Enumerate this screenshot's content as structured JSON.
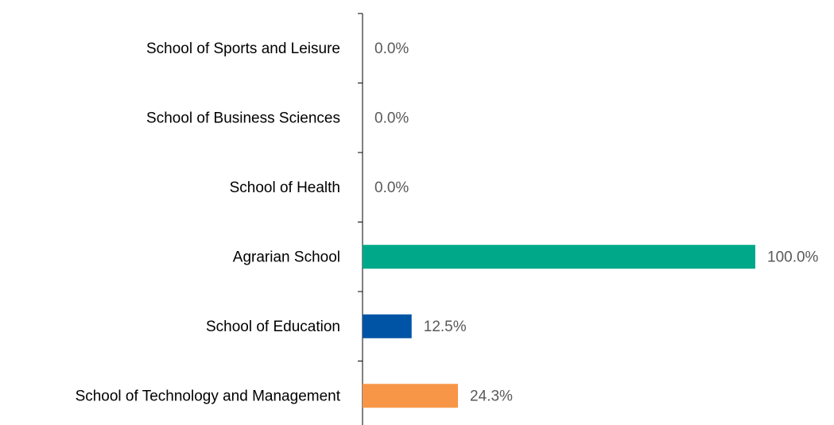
{
  "chart_data": {
    "type": "barh",
    "categories": [
      "School of Sports and Leisure",
      "School of Business Sciences",
      "School of Health",
      "Agrarian School",
      "School of Education",
      "School of Technology and Management"
    ],
    "values": [
      0,
      0,
      0,
      100,
      12.5,
      24.3
    ],
    "value_labels": [
      "0.0%",
      "0.0%",
      "0.0%",
      "100.0%",
      "12.5%",
      "24.3%"
    ],
    "colors": [
      null,
      null,
      null,
      "#00a88a",
      "#0054a6",
      "#f79646"
    ],
    "xlim": [
      0,
      100
    ]
  }
}
